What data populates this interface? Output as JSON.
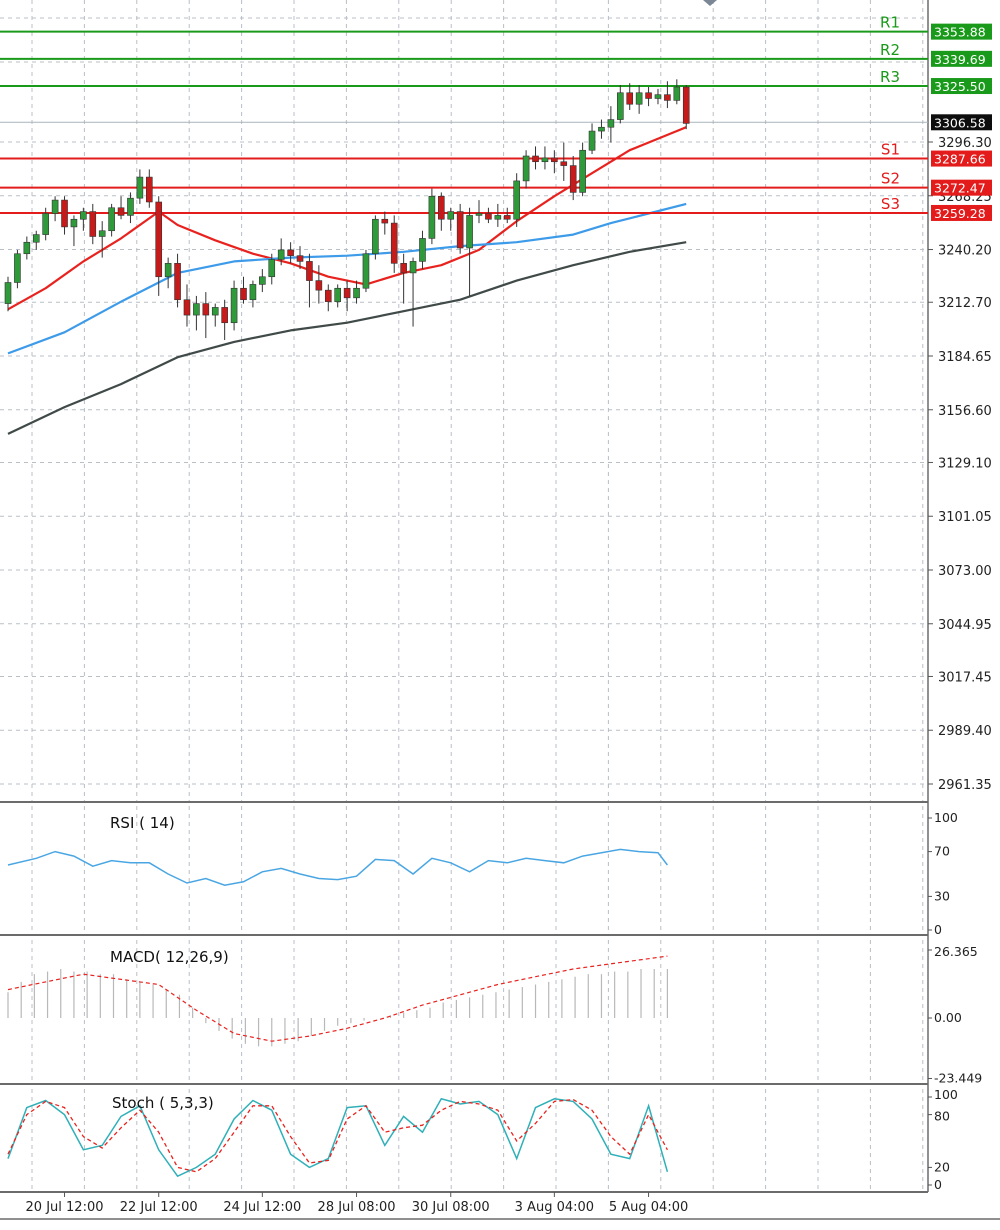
{
  "chart_data": {
    "type": "candlestick",
    "main": {
      "y_axis_ticks": [
        3296.3,
        3268.25,
        3240.2,
        3212.7,
        3184.65,
        3156.6,
        3129.1,
        3101.05,
        3073.0,
        3044.95,
        3017.45,
        2989.4,
        2961.35
      ],
      "y_axis_tick_labels": [
        "3296.30",
        "3268.25",
        "3240.20",
        "3212.70",
        "3184.65",
        "3156.60",
        "3129.10",
        "3101.05",
        "3073.00",
        "3044.95",
        "3017.45",
        "2989.40",
        "2961.35"
      ],
      "current_price": 3306.58,
      "current_price_label": "3306.58",
      "levels": [
        {
          "label": "R1",
          "value": 3353.88,
          "value_label": "3353.88",
          "color": "#1a9a1a"
        },
        {
          "label": "R2",
          "value": 3339.69,
          "value_label": "3339.69",
          "color": "#1a9a1a"
        },
        {
          "label": "R3",
          "value": 3325.5,
          "value_label": "3325.50",
          "color": "#1a9a1a"
        },
        {
          "label": "S1",
          "value": 3287.66,
          "value_label": "3287.66",
          "color": "#e31b1b"
        },
        {
          "label": "S2",
          "value": 3272.47,
          "value_label": "3272.47",
          "color": "#e31b1b"
        },
        {
          "label": "S3",
          "value": 3259.28,
          "value_label": "3259.28",
          "color": "#e31b1b"
        }
      ],
      "candles": [
        [
          3212,
          3226,
          3208,
          3223
        ],
        [
          3223,
          3240,
          3220,
          3238
        ],
        [
          3238,
          3247,
          3235,
          3244
        ],
        [
          3244,
          3250,
          3240,
          3248
        ],
        [
          3248,
          3262,
          3245,
          3259
        ],
        [
          3259,
          3268,
          3255,
          3266
        ],
        [
          3266,
          3268,
          3248,
          3252
        ],
        [
          3252,
          3258,
          3242,
          3256
        ],
        [
          3256,
          3262,
          3250,
          3260
        ],
        [
          3260,
          3264,
          3243,
          3247
        ],
        [
          3247,
          3255,
          3236,
          3250
        ],
        [
          3250,
          3264,
          3247,
          3262
        ],
        [
          3262,
          3268,
          3256,
          3258
        ],
        [
          3258,
          3270,
          3254,
          3267
        ],
        [
          3267,
          3282,
          3264,
          3278
        ],
        [
          3278,
          3282,
          3262,
          3265
        ],
        [
          3265,
          3268,
          3216,
          3226
        ],
        [
          3226,
          3236,
          3220,
          3233
        ],
        [
          3233,
          3238,
          3210,
          3214
        ],
        [
          3214,
          3222,
          3200,
          3206
        ],
        [
          3206,
          3216,
          3198,
          3212
        ],
        [
          3212,
          3218,
          3194,
          3206
        ],
        [
          3206,
          3212,
          3200,
          3210
        ],
        [
          3210,
          3214,
          3193,
          3202
        ],
        [
          3202,
          3224,
          3198,
          3220
        ],
        [
          3220,
          3226,
          3212,
          3214
        ],
        [
          3214,
          3224,
          3210,
          3222
        ],
        [
          3222,
          3230,
          3218,
          3226
        ],
        [
          3226,
          3238,
          3222,
          3235
        ],
        [
          3235,
          3246,
          3232,
          3240
        ],
        [
          3240,
          3244,
          3233,
          3237
        ],
        [
          3237,
          3242,
          3230,
          3234
        ],
        [
          3234,
          3238,
          3210,
          3224
        ],
        [
          3224,
          3232,
          3212,
          3219
        ],
        [
          3219,
          3222,
          3208,
          3213
        ],
        [
          3213,
          3222,
          3210,
          3220
        ],
        [
          3220,
          3224,
          3208,
          3215
        ],
        [
          3215,
          3224,
          3212,
          3220
        ],
        [
          3220,
          3240,
          3218,
          3238
        ],
        [
          3238,
          3258,
          3235,
          3256
        ],
        [
          3256,
          3260,
          3248,
          3254
        ],
        [
          3254,
          3258,
          3228,
          3233
        ],
        [
          3233,
          3238,
          3212,
          3228
        ],
        [
          3228,
          3236,
          3200,
          3234
        ],
        [
          3234,
          3250,
          3230,
          3246
        ],
        [
          3246,
          3272,
          3243,
          3268
        ],
        [
          3268,
          3270,
          3250,
          3256
        ],
        [
          3256,
          3262,
          3250,
          3260
        ],
        [
          3260,
          3264,
          3238,
          3241
        ],
        [
          3241,
          3262,
          3216,
          3258
        ],
        [
          3258,
          3266,
          3254,
          3259
        ],
        [
          3259,
          3262,
          3254,
          3256
        ],
        [
          3256,
          3264,
          3252,
          3258
        ],
        [
          3258,
          3262,
          3254,
          3256
        ],
        [
          3256,
          3280,
          3252,
          3276
        ],
        [
          3276,
          3292,
          3272,
          3289
        ],
        [
          3289,
          3294,
          3282,
          3286
        ],
        [
          3286,
          3294,
          3282,
          3288
        ],
        [
          3288,
          3292,
          3280,
          3286
        ],
        [
          3286,
          3296,
          3276,
          3284
        ],
        [
          3284,
          3289,
          3266,
          3270
        ],
        [
          3270,
          3296,
          3268,
          3292
        ],
        [
          3292,
          3306,
          3290,
          3302
        ],
        [
          3302,
          3308,
          3298,
          3304
        ],
        [
          3304,
          3315,
          3296,
          3308
        ],
        [
          3308,
          3326,
          3306,
          3322
        ],
        [
          3322,
          3327,
          3313,
          3316
        ],
        [
          3316,
          3326,
          3311,
          3322
        ],
        [
          3322,
          3325,
          3315,
          3319
        ],
        [
          3319,
          3324,
          3316,
          3321
        ],
        [
          3321,
          3328,
          3314,
          3318
        ],
        [
          3318,
          3329,
          3316,
          3325
        ],
        [
          3325,
          3326,
          3303,
          3306
        ]
      ],
      "moving_averages": [
        {
          "color": "#e8231f",
          "values": [
            [
              0,
              3209
            ],
            [
              4,
              3220
            ],
            [
              8,
              3234
            ],
            [
              12,
              3246
            ],
            [
              16,
              3260
            ],
            [
              18,
              3253
            ],
            [
              22,
              3245
            ],
            [
              26,
              3238
            ],
            [
              30,
              3233
            ],
            [
              34,
              3226
            ],
            [
              38,
              3222
            ],
            [
              42,
              3228
            ],
            [
              46,
              3232
            ],
            [
              50,
              3240
            ],
            [
              54,
              3255
            ],
            [
              58,
              3268
            ],
            [
              62,
              3280
            ],
            [
              66,
              3292
            ],
            [
              70,
              3300
            ],
            [
              72,
              3304
            ]
          ]
        },
        {
          "color": "#3d9be9",
          "values": [
            [
              0,
              3186
            ],
            [
              6,
              3197
            ],
            [
              12,
              3213
            ],
            [
              18,
              3228
            ],
            [
              24,
              3234
            ],
            [
              30,
              3236
            ],
            [
              36,
              3237
            ],
            [
              42,
              3239
            ],
            [
              48,
              3242
            ],
            [
              54,
              3244
            ],
            [
              60,
              3248
            ],
            [
              64,
              3254
            ],
            [
              68,
              3259
            ],
            [
              72,
              3264
            ]
          ]
        },
        {
          "color": "#404a48",
          "values": [
            [
              0,
              3144
            ],
            [
              6,
              3158
            ],
            [
              12,
              3170
            ],
            [
              18,
              3184
            ],
            [
              24,
              3192
            ],
            [
              30,
              3198
            ],
            [
              36,
              3202
            ],
            [
              42,
              3208
            ],
            [
              48,
              3214
            ],
            [
              54,
              3224
            ],
            [
              60,
              3232
            ],
            [
              66,
              3239
            ],
            [
              72,
              3244
            ]
          ]
        }
      ]
    },
    "time_axis_labels": [
      {
        "i": 6,
        "label": "20 Jul 12:00"
      },
      {
        "i": 16,
        "label": "22 Jul 12:00"
      },
      {
        "i": 27,
        "label": "24 Jul 12:00"
      },
      {
        "i": 37,
        "label": "28 Jul 08:00"
      },
      {
        "i": 47,
        "label": "30 Jul 08:00"
      },
      {
        "i": 58,
        "label": "3 Aug 04:00"
      },
      {
        "i": 68,
        "label": "5 Aug 04:00"
      }
    ],
    "rsi": {
      "title": "RSI ( 14)",
      "ticks": [
        "100",
        "70",
        "30",
        "0"
      ],
      "color": "#4aa6e3",
      "values": [
        [
          0,
          58
        ],
        [
          3,
          64
        ],
        [
          5,
          70
        ],
        [
          7,
          66
        ],
        [
          9,
          57
        ],
        [
          11,
          62
        ],
        [
          13,
          60
        ],
        [
          15,
          60
        ],
        [
          17,
          50
        ],
        [
          19,
          42
        ],
        [
          21,
          46
        ],
        [
          23,
          40
        ],
        [
          25,
          43
        ],
        [
          27,
          52
        ],
        [
          29,
          55
        ],
        [
          31,
          50
        ],
        [
          33,
          46
        ],
        [
          35,
          45
        ],
        [
          37,
          48
        ],
        [
          39,
          63
        ],
        [
          41,
          62
        ],
        [
          43,
          50
        ],
        [
          45,
          64
        ],
        [
          47,
          60
        ],
        [
          49,
          52
        ],
        [
          51,
          62
        ],
        [
          53,
          60
        ],
        [
          55,
          64
        ],
        [
          57,
          62
        ],
        [
          59,
          60
        ],
        [
          61,
          66
        ],
        [
          63,
          69
        ],
        [
          65,
          72
        ],
        [
          67,
          70
        ],
        [
          69,
          69
        ],
        [
          70,
          58
        ]
      ]
    },
    "macd": {
      "title": "MACD( 12,26,9)",
      "ticks": [
        "26.365",
        "0.00",
        "-23.449"
      ],
      "hist_color": "#b8b8b8",
      "signal_color": "#e8231f",
      "histogram": [
        10,
        14,
        17,
        18,
        19,
        18,
        18,
        17,
        17,
        15,
        14,
        13,
        11,
        9,
        4,
        -2,
        -5,
        -8,
        -10,
        -11,
        -11,
        -10,
        -9,
        -7,
        -5,
        -3,
        -2,
        -1,
        0,
        1,
        2,
        3,
        4,
        6,
        7,
        8,
        9,
        10,
        11,
        12,
        13,
        14,
        15,
        16,
        17,
        17,
        18,
        18,
        19,
        19,
        19
      ],
      "signal": [
        [
          0,
          11
        ],
        [
          8,
          17
        ],
        [
          16,
          13
        ],
        [
          20,
          3
        ],
        [
          24,
          -6
        ],
        [
          28,
          -9
        ],
        [
          32,
          -7
        ],
        [
          36,
          -4
        ],
        [
          40,
          0
        ],
        [
          44,
          5
        ],
        [
          48,
          9
        ],
        [
          52,
          13
        ],
        [
          56,
          16
        ],
        [
          60,
          19
        ],
        [
          64,
          21
        ],
        [
          68,
          23
        ],
        [
          70,
          24
        ]
      ]
    },
    "stoch": {
      "title": "Stoch ( 5,3,3)",
      "ticks": [
        "100",
        "80",
        "20",
        "0"
      ],
      "main_color": "#2fb0b8",
      "signal_color": "#e8231f",
      "main": [
        [
          0,
          30
        ],
        [
          2,
          88
        ],
        [
          4,
          96
        ],
        [
          6,
          80
        ],
        [
          8,
          40
        ],
        [
          10,
          45
        ],
        [
          12,
          78
        ],
        [
          14,
          90
        ],
        [
          16,
          40
        ],
        [
          18,
          10
        ],
        [
          20,
          20
        ],
        [
          22,
          35
        ],
        [
          24,
          75
        ],
        [
          26,
          96
        ],
        [
          28,
          85
        ],
        [
          30,
          35
        ],
        [
          32,
          20
        ],
        [
          34,
          30
        ],
        [
          36,
          88
        ],
        [
          38,
          90
        ],
        [
          40,
          45
        ],
        [
          42,
          78
        ],
        [
          44,
          60
        ],
        [
          46,
          98
        ],
        [
          48,
          92
        ],
        [
          50,
          95
        ],
        [
          52,
          80
        ],
        [
          54,
          30
        ],
        [
          56,
          88
        ],
        [
          58,
          98
        ],
        [
          60,
          95
        ],
        [
          62,
          75
        ],
        [
          64,
          35
        ],
        [
          66,
          30
        ],
        [
          68,
          90
        ],
        [
          70,
          15
        ]
      ],
      "signal": [
        [
          0,
          35
        ],
        [
          2,
          80
        ],
        [
          4,
          95
        ],
        [
          6,
          88
        ],
        [
          8,
          55
        ],
        [
          10,
          42
        ],
        [
          12,
          65
        ],
        [
          14,
          85
        ],
        [
          16,
          60
        ],
        [
          18,
          20
        ],
        [
          20,
          15
        ],
        [
          22,
          30
        ],
        [
          24,
          60
        ],
        [
          26,
          90
        ],
        [
          28,
          90
        ],
        [
          30,
          55
        ],
        [
          32,
          25
        ],
        [
          34,
          28
        ],
        [
          36,
          75
        ],
        [
          38,
          90
        ],
        [
          40,
          60
        ],
        [
          42,
          65
        ],
        [
          44,
          68
        ],
        [
          46,
          85
        ],
        [
          48,
          95
        ],
        [
          50,
          92
        ],
        [
          52,
          85
        ],
        [
          54,
          50
        ],
        [
          56,
          70
        ],
        [
          58,
          95
        ],
        [
          60,
          97
        ],
        [
          62,
          85
        ],
        [
          64,
          55
        ],
        [
          66,
          35
        ],
        [
          68,
          80
        ],
        [
          70,
          40
        ]
      ]
    }
  }
}
